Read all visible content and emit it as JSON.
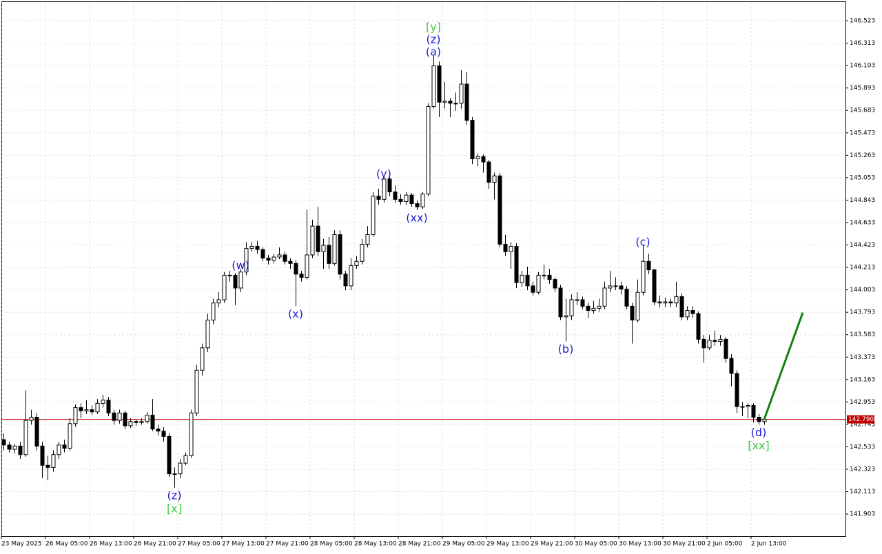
{
  "chart_data": {
    "type": "candlestick",
    "up_color": "#ffffff",
    "down_color": "#000000",
    "grid": true,
    "ylim": [
      141.697,
      146.717
    ],
    "yticks": [
      146.523,
      146.313,
      146.103,
      145.893,
      145.683,
      145.473,
      145.263,
      145.053,
      144.843,
      144.633,
      144.423,
      144.213,
      144.003,
      143.793,
      143.583,
      143.373,
      143.163,
      142.953,
      142.743,
      142.533,
      142.323,
      142.113,
      141.903
    ],
    "price_line": {
      "value": 142.79,
      "label": "142.790",
      "color": "#c00000"
    },
    "categories": [
      "23 May 2025",
      null,
      null,
      null,
      null,
      null,
      null,
      null,
      "26 May 05:00",
      null,
      null,
      null,
      null,
      null,
      null,
      null,
      "26 May 13:00",
      null,
      null,
      null,
      null,
      null,
      null,
      null,
      "26 May 21:00",
      null,
      null,
      null,
      null,
      null,
      null,
      null,
      "27 May 05:00",
      null,
      null,
      null,
      null,
      null,
      null,
      null,
      "27 May 13:00",
      null,
      null,
      null,
      null,
      null,
      null,
      null,
      "27 May 21:00",
      null,
      null,
      null,
      null,
      null,
      null,
      null,
      "28 May 05:00",
      null,
      null,
      null,
      null,
      null,
      null,
      null,
      "28 May 13:00",
      null,
      null,
      null,
      null,
      null,
      null,
      null,
      "28 May 21:00",
      null,
      null,
      null,
      null,
      null,
      null,
      null,
      "29 May 05:00",
      null,
      null,
      null,
      null,
      null,
      null,
      null,
      "29 May 13:00",
      null,
      null,
      null,
      null,
      null,
      null,
      null,
      "29 May 21:00",
      null,
      null,
      null,
      null,
      null,
      null,
      null,
      "30 May 05:00",
      null,
      null,
      null,
      null,
      null,
      null,
      null,
      "30 May 13:00",
      null,
      null,
      null,
      null,
      null,
      null,
      null,
      "30 May 21:00",
      null,
      null,
      null,
      null,
      null,
      null,
      null,
      "2 Jun 05:00",
      null,
      null,
      null,
      null,
      null,
      null,
      null,
      "2 Jun 13:00",
      null,
      null
    ],
    "ohlc": [
      [
        142.6,
        142.66,
        142.5,
        142.55
      ],
      [
        142.55,
        142.58,
        142.48,
        142.51
      ],
      [
        142.51,
        142.56,
        142.47,
        142.54
      ],
      [
        142.54,
        142.58,
        142.42,
        142.46
      ],
      [
        142.46,
        143.06,
        142.44,
        142.78
      ],
      [
        142.78,
        142.88,
        142.74,
        142.81
      ],
      [
        142.81,
        142.85,
        142.5,
        142.54
      ],
      [
        142.54,
        142.58,
        142.24,
        142.36
      ],
      [
        142.36,
        142.45,
        142.22,
        142.34
      ],
      [
        142.34,
        142.5,
        142.3,
        142.46
      ],
      [
        142.46,
        142.58,
        142.42,
        142.55
      ],
      [
        142.55,
        142.6,
        142.48,
        142.52
      ],
      [
        142.52,
        142.8,
        142.5,
        142.75
      ],
      [
        142.75,
        142.93,
        142.72,
        142.9
      ],
      [
        142.9,
        142.94,
        142.8,
        142.87
      ],
      [
        142.87,
        142.97,
        142.84,
        142.88
      ],
      [
        142.88,
        142.92,
        142.83,
        142.86
      ],
      [
        142.86,
        142.98,
        142.84,
        142.94
      ],
      [
        142.94,
        143.02,
        142.9,
        142.97
      ],
      [
        142.97,
        143.0,
        142.82,
        142.85
      ],
      [
        142.85,
        142.88,
        142.74,
        142.78
      ],
      [
        142.78,
        142.88,
        142.75,
        142.85
      ],
      [
        142.85,
        142.87,
        142.7,
        142.73
      ],
      [
        142.73,
        142.8,
        142.71,
        142.77
      ],
      [
        142.77,
        142.79,
        142.73,
        142.76
      ],
      [
        142.76,
        142.8,
        142.74,
        142.77
      ],
      [
        142.77,
        142.86,
        142.75,
        142.83
      ],
      [
        142.83,
        142.98,
        142.68,
        142.7
      ],
      [
        142.7,
        142.74,
        142.64,
        142.68
      ],
      [
        142.68,
        142.72,
        142.58,
        142.63
      ],
      [
        142.63,
        142.66,
        142.25,
        142.28
      ],
      [
        142.28,
        142.34,
        142.15,
        142.28
      ],
      [
        142.28,
        142.42,
        142.24,
        142.38
      ],
      [
        142.38,
        142.48,
        142.36,
        142.45
      ],
      [
        142.45,
        142.88,
        142.43,
        142.85
      ],
      [
        142.85,
        143.3,
        142.82,
        143.25
      ],
      [
        143.25,
        143.5,
        143.2,
        143.46
      ],
      [
        143.46,
        143.78,
        143.42,
        143.72
      ],
      [
        143.72,
        143.92,
        143.68,
        143.88
      ],
      [
        143.88,
        143.98,
        143.84,
        143.91
      ],
      [
        143.91,
        144.17,
        143.88,
        144.14
      ],
      [
        144.14,
        144.18,
        144.08,
        144.14
      ],
      [
        144.14,
        144.16,
        143.86,
        144.02
      ],
      [
        144.02,
        144.2,
        143.98,
        144.17
      ],
      [
        144.17,
        144.45,
        144.14,
        144.39
      ],
      [
        144.39,
        144.45,
        144.36,
        144.41
      ],
      [
        144.41,
        144.46,
        144.34,
        144.38
      ],
      [
        144.38,
        144.4,
        144.27,
        144.3
      ],
      [
        144.3,
        144.33,
        144.24,
        144.28
      ],
      [
        144.28,
        144.34,
        144.25,
        144.31
      ],
      [
        144.31,
        144.4,
        144.29,
        144.33
      ],
      [
        144.33,
        144.36,
        144.24,
        144.27
      ],
      [
        144.27,
        144.3,
        144.2,
        144.25
      ],
      [
        144.25,
        144.28,
        143.85,
        144.15
      ],
      [
        144.15,
        144.18,
        144.08,
        144.12
      ],
      [
        144.12,
        144.75,
        144.1,
        144.33
      ],
      [
        144.33,
        144.66,
        144.3,
        144.6
      ],
      [
        144.6,
        144.78,
        144.32,
        144.36
      ],
      [
        144.36,
        144.48,
        144.2,
        144.42
      ],
      [
        144.42,
        144.5,
        144.2,
        144.25
      ],
      [
        144.25,
        144.56,
        144.23,
        144.52
      ],
      [
        144.52,
        144.56,
        144.1,
        144.15
      ],
      [
        144.15,
        144.18,
        144.0,
        144.04
      ],
      [
        144.04,
        144.3,
        144.0,
        144.23
      ],
      [
        144.23,
        144.32,
        144.2,
        144.27
      ],
      [
        144.27,
        144.48,
        144.24,
        144.43
      ],
      [
        144.43,
        144.6,
        144.4,
        144.52
      ],
      [
        144.52,
        144.92,
        144.5,
        144.88
      ],
      [
        144.88,
        144.95,
        144.8,
        144.85
      ],
      [
        144.85,
        145.06,
        144.82,
        145.04
      ],
      [
        145.04,
        145.06,
        144.88,
        144.92
      ],
      [
        144.92,
        144.98,
        144.82,
        144.85
      ],
      [
        144.85,
        144.9,
        144.8,
        144.83
      ],
      [
        144.83,
        144.92,
        144.8,
        144.89
      ],
      [
        144.89,
        144.91,
        144.78,
        144.81
      ],
      [
        144.81,
        144.84,
        144.75,
        144.78
      ],
      [
        144.78,
        144.92,
        144.76,
        144.9
      ],
      [
        144.9,
        145.75,
        144.88,
        145.72
      ],
      [
        145.72,
        146.2,
        145.7,
        146.1
      ],
      [
        146.1,
        146.14,
        145.62,
        145.76
      ],
      [
        145.76,
        145.95,
        145.7,
        145.77
      ],
      [
        145.77,
        145.8,
        145.62,
        145.75
      ],
      [
        145.75,
        145.85,
        145.68,
        145.75
      ],
      [
        145.75,
        146.06,
        145.7,
        145.93
      ],
      [
        145.93,
        146.04,
        145.55,
        145.59
      ],
      [
        145.59,
        145.62,
        145.18,
        145.23
      ],
      [
        145.23,
        145.28,
        145.16,
        145.25
      ],
      [
        145.25,
        145.27,
        145.1,
        145.2
      ],
      [
        145.2,
        145.22,
        144.95,
        145.01
      ],
      [
        145.01,
        145.1,
        144.85,
        145.07
      ],
      [
        145.07,
        145.1,
        144.4,
        144.43
      ],
      [
        144.43,
        144.52,
        144.32,
        144.36
      ],
      [
        144.36,
        144.45,
        144.2,
        144.41
      ],
      [
        144.41,
        144.44,
        144.02,
        144.07
      ],
      [
        144.07,
        144.18,
        144.03,
        144.14
      ],
      [
        144.14,
        144.22,
        144.0,
        144.04
      ],
      [
        144.04,
        144.08,
        143.95,
        143.98
      ],
      [
        143.98,
        144.17,
        143.96,
        144.14
      ],
      [
        144.14,
        144.24,
        144.1,
        144.14
      ],
      [
        144.14,
        144.2,
        144.06,
        144.1
      ],
      [
        144.1,
        144.12,
        143.98,
        144.02
      ],
      [
        144.02,
        144.05,
        143.72,
        143.75
      ],
      [
        143.75,
        143.92,
        143.52,
        143.76
      ],
      [
        143.76,
        143.96,
        143.72,
        143.91
      ],
      [
        143.91,
        143.98,
        143.86,
        143.91
      ],
      [
        143.91,
        143.94,
        143.82,
        143.85
      ],
      [
        143.85,
        143.88,
        143.74,
        143.81
      ],
      [
        143.81,
        143.9,
        143.78,
        143.83
      ],
      [
        143.83,
        143.92,
        143.8,
        143.85
      ],
      [
        143.85,
        144.08,
        143.82,
        144.02
      ],
      [
        144.02,
        144.18,
        143.98,
        144.04
      ],
      [
        144.04,
        144.12,
        144.0,
        144.04
      ],
      [
        144.04,
        144.08,
        143.96,
        144.01
      ],
      [
        144.01,
        144.04,
        143.82,
        143.85
      ],
      [
        143.85,
        143.88,
        143.5,
        143.72
      ],
      [
        143.72,
        144.1,
        143.7,
        143.98
      ],
      [
        143.98,
        144.42,
        143.95,
        144.27
      ],
      [
        144.27,
        144.34,
        144.15,
        144.19
      ],
      [
        144.19,
        144.2,
        143.86,
        143.89
      ],
      [
        143.89,
        143.95,
        143.84,
        143.88
      ],
      [
        143.88,
        143.93,
        143.84,
        143.89
      ],
      [
        143.89,
        143.92,
        143.84,
        143.88
      ],
      [
        143.88,
        144.08,
        143.84,
        143.94
      ],
      [
        143.94,
        143.97,
        143.72,
        143.75
      ],
      [
        143.75,
        143.85,
        143.72,
        143.81
      ],
      [
        143.81,
        143.85,
        143.74,
        143.78
      ],
      [
        143.78,
        143.8,
        143.5,
        143.54
      ],
      [
        143.54,
        143.58,
        143.32,
        143.46
      ],
      [
        143.46,
        143.58,
        143.44,
        143.53
      ],
      [
        143.53,
        143.62,
        143.48,
        143.52
      ],
      [
        143.52,
        143.58,
        143.48,
        143.54
      ],
      [
        143.54,
        143.56,
        143.32,
        143.36
      ],
      [
        143.36,
        143.4,
        143.1,
        143.22
      ],
      [
        143.22,
        143.25,
        142.85,
        142.91
      ],
      [
        142.91,
        142.95,
        142.82,
        142.91
      ],
      [
        142.91,
        142.94,
        142.8,
        142.92
      ],
      [
        142.92,
        142.94,
        142.76,
        142.81
      ],
      [
        142.81,
        142.84,
        142.74,
        142.77
      ],
      [
        142.77,
        142.82,
        142.74,
        142.79
      ]
    ],
    "forecast": {
      "color": "#108010",
      "x": [
        138,
        145
      ],
      "y": [
        142.79,
        143.79
      ]
    },
    "annotations": [
      {
        "text": "(z)",
        "candle": 31,
        "side": "below",
        "color": "#1c1cd8"
      },
      {
        "text": "[x]",
        "candle": 31,
        "side": "below",
        "color": "#3cc83c"
      },
      {
        "text": "(w)",
        "candle": 43,
        "side": "above",
        "color": "#1c1cd8"
      },
      {
        "text": "(x)",
        "candle": 53,
        "side": "below",
        "color": "#1c1cd8"
      },
      {
        "text": "(y)",
        "candle": 69,
        "side": "above",
        "color": "#1c1cd8"
      },
      {
        "text": "(xx)",
        "candle": 75,
        "side": "below",
        "color": "#1c1cd8"
      },
      {
        "text": "(a)",
        "candle": 78,
        "side": "above",
        "color": "#1c1cd8"
      },
      {
        "text": "(z)",
        "candle": 78,
        "side": "above",
        "color": "#1c1cd8"
      },
      {
        "text": "[y]",
        "candle": 78,
        "side": "above",
        "color": "#3cc83c"
      },
      {
        "text": "(b)",
        "candle": 102,
        "side": "below",
        "color": "#1c1cd8"
      },
      {
        "text": "(c)",
        "candle": 116,
        "side": "above",
        "color": "#1c1cd8"
      },
      {
        "text": "(d)",
        "candle": 137,
        "side": "below",
        "color": "#1c1cd8"
      },
      {
        "text": "[xx]",
        "candle": 137,
        "side": "below",
        "color": "#3cc83c"
      }
    ]
  }
}
